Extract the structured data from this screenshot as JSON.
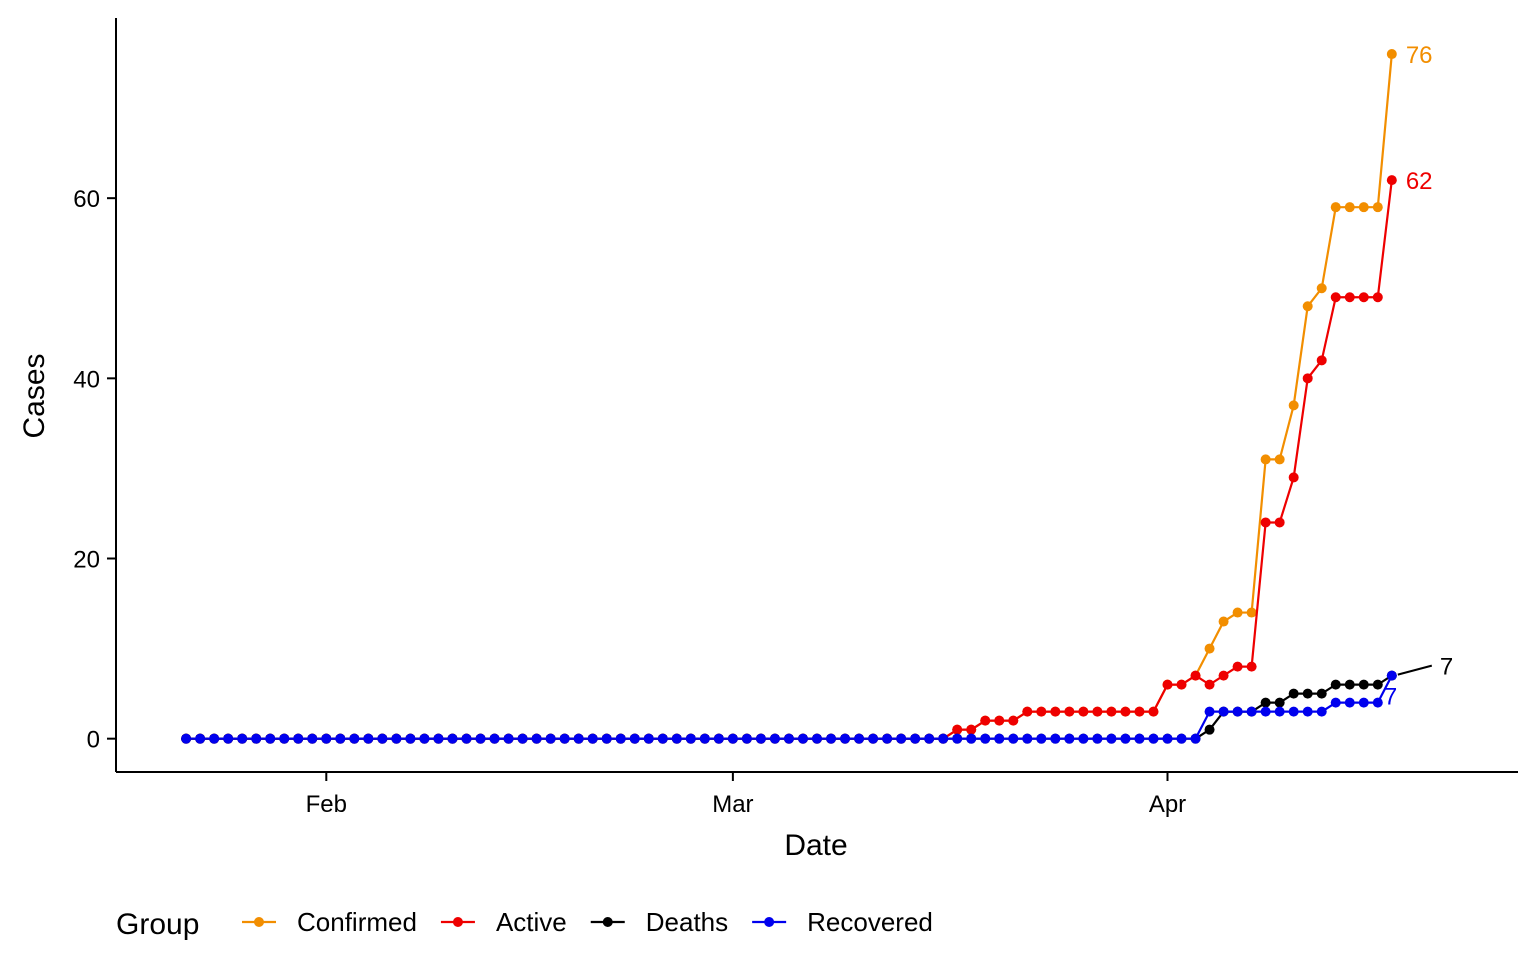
{
  "chart_data": {
    "type": "line",
    "xlabel": "Date",
    "ylabel": "Cases",
    "x_ticks": [
      {
        "date": "2020-02-01",
        "label": "Feb"
      },
      {
        "date": "2020-03-01",
        "label": "Mar"
      },
      {
        "date": "2020-04-01",
        "label": "Apr"
      }
    ],
    "y_ticks": [
      0,
      20,
      40,
      60
    ],
    "xlim": [
      "2020-01-17",
      "2020-04-26"
    ],
    "ylim": [
      -3.7,
      80
    ],
    "grid": false,
    "legend": {
      "title": "Group",
      "position": "bottom"
    },
    "x_dates": [
      "2020-01-22",
      "2020-01-23",
      "2020-01-24",
      "2020-01-25",
      "2020-01-26",
      "2020-01-27",
      "2020-01-28",
      "2020-01-29",
      "2020-01-30",
      "2020-01-31",
      "2020-02-01",
      "2020-02-02",
      "2020-02-03",
      "2020-02-04",
      "2020-02-05",
      "2020-02-06",
      "2020-02-07",
      "2020-02-08",
      "2020-02-09",
      "2020-02-10",
      "2020-02-11",
      "2020-02-12",
      "2020-02-13",
      "2020-02-14",
      "2020-02-15",
      "2020-02-16",
      "2020-02-17",
      "2020-02-18",
      "2020-02-19",
      "2020-02-20",
      "2020-02-21",
      "2020-02-22",
      "2020-02-23",
      "2020-02-24",
      "2020-02-25",
      "2020-02-26",
      "2020-02-27",
      "2020-02-28",
      "2020-02-29",
      "2020-03-01",
      "2020-03-02",
      "2020-03-03",
      "2020-03-04",
      "2020-03-05",
      "2020-03-06",
      "2020-03-07",
      "2020-03-08",
      "2020-03-09",
      "2020-03-10",
      "2020-03-11",
      "2020-03-12",
      "2020-03-13",
      "2020-03-14",
      "2020-03-15",
      "2020-03-16",
      "2020-03-17",
      "2020-03-18",
      "2020-03-19",
      "2020-03-20",
      "2020-03-21",
      "2020-03-22",
      "2020-03-23",
      "2020-03-24",
      "2020-03-25",
      "2020-03-26",
      "2020-03-27",
      "2020-03-28",
      "2020-03-29",
      "2020-03-30",
      "2020-03-31",
      "2020-04-01",
      "2020-04-02",
      "2020-04-03",
      "2020-04-04",
      "2020-04-05",
      "2020-04-06",
      "2020-04-07",
      "2020-04-08",
      "2020-04-09",
      "2020-04-10",
      "2020-04-11",
      "2020-04-12",
      "2020-04-13",
      "2020-04-14",
      "2020-04-15",
      "2020-04-16",
      "2020-04-17"
    ],
    "series": [
      {
        "name": "Confirmed",
        "color": "#F28E00",
        "values": [
          0,
          0,
          0,
          0,
          0,
          0,
          0,
          0,
          0,
          0,
          0,
          0,
          0,
          0,
          0,
          0,
          0,
          0,
          0,
          0,
          0,
          0,
          0,
          0,
          0,
          0,
          0,
          0,
          0,
          0,
          0,
          0,
          0,
          0,
          0,
          0,
          0,
          0,
          0,
          0,
          0,
          0,
          0,
          0,
          0,
          0,
          0,
          0,
          0,
          0,
          0,
          0,
          0,
          0,
          0,
          1,
          1,
          2,
          2,
          2,
          3,
          3,
          3,
          3,
          3,
          3,
          3,
          3,
          3,
          3,
          6,
          6,
          7,
          10,
          13,
          14,
          14,
          31,
          31,
          37,
          48,
          50,
          59,
          59,
          59,
          59,
          76
        ],
        "end_label": "76"
      },
      {
        "name": "Active",
        "color": "#EE0000",
        "values": [
          0,
          0,
          0,
          0,
          0,
          0,
          0,
          0,
          0,
          0,
          0,
          0,
          0,
          0,
          0,
          0,
          0,
          0,
          0,
          0,
          0,
          0,
          0,
          0,
          0,
          0,
          0,
          0,
          0,
          0,
          0,
          0,
          0,
          0,
          0,
          0,
          0,
          0,
          0,
          0,
          0,
          0,
          0,
          0,
          0,
          0,
          0,
          0,
          0,
          0,
          0,
          0,
          0,
          0,
          0,
          1,
          1,
          2,
          2,
          2,
          3,
          3,
          3,
          3,
          3,
          3,
          3,
          3,
          3,
          3,
          6,
          6,
          7,
          6,
          7,
          8,
          8,
          24,
          24,
          29,
          40,
          42,
          49,
          49,
          49,
          49,
          62
        ],
        "end_label": "62"
      },
      {
        "name": "Deaths",
        "color": "#000000",
        "values": [
          0,
          0,
          0,
          0,
          0,
          0,
          0,
          0,
          0,
          0,
          0,
          0,
          0,
          0,
          0,
          0,
          0,
          0,
          0,
          0,
          0,
          0,
          0,
          0,
          0,
          0,
          0,
          0,
          0,
          0,
          0,
          0,
          0,
          0,
          0,
          0,
          0,
          0,
          0,
          0,
          0,
          0,
          0,
          0,
          0,
          0,
          0,
          0,
          0,
          0,
          0,
          0,
          0,
          0,
          0,
          0,
          0,
          0,
          0,
          0,
          0,
          0,
          0,
          0,
          0,
          0,
          0,
          0,
          0,
          0,
          0,
          0,
          0,
          1,
          3,
          3,
          3,
          4,
          4,
          5,
          5,
          5,
          6,
          6,
          6,
          6,
          7
        ],
        "end_label": "7"
      },
      {
        "name": "Recovered",
        "color": "#0000EE",
        "values": [
          0,
          0,
          0,
          0,
          0,
          0,
          0,
          0,
          0,
          0,
          0,
          0,
          0,
          0,
          0,
          0,
          0,
          0,
          0,
          0,
          0,
          0,
          0,
          0,
          0,
          0,
          0,
          0,
          0,
          0,
          0,
          0,
          0,
          0,
          0,
          0,
          0,
          0,
          0,
          0,
          0,
          0,
          0,
          0,
          0,
          0,
          0,
          0,
          0,
          0,
          0,
          0,
          0,
          0,
          0,
          0,
          0,
          0,
          0,
          0,
          0,
          0,
          0,
          0,
          0,
          0,
          0,
          0,
          0,
          0,
          0,
          0,
          0,
          3,
          3,
          3,
          3,
          3,
          3,
          3,
          3,
          3,
          4,
          4,
          4,
          4,
          7
        ],
        "end_label": "7"
      }
    ]
  }
}
